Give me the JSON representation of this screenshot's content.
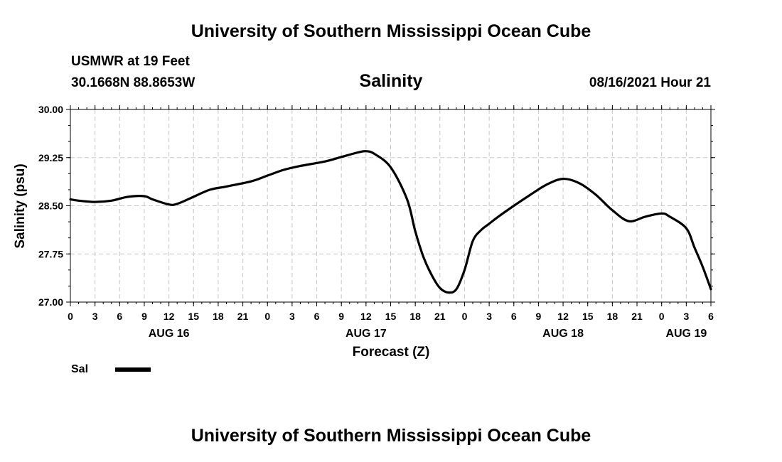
{
  "header": {
    "title": "University of Southern Mississippi Ocean Cube",
    "station": "USMWR at 19 Feet",
    "coords": "30.1668N  88.8653W",
    "chart_title": "Salinity",
    "datetime": "08/16/2021 Hour 21"
  },
  "footer": {
    "title": "University of Southern Mississippi Ocean Cube"
  },
  "legend": {
    "label": "Sal"
  },
  "chart_data": {
    "type": "line",
    "title": "Salinity",
    "xlabel": "Forecast (Z)",
    "ylabel": "Salinity (psu)",
    "xlim": [
      0,
      78
    ],
    "ylim": [
      27.0,
      30.0
    ],
    "yticks": [
      "27.00",
      "27.75",
      "28.50",
      "29.25",
      "30.00"
    ],
    "ytick_values": [
      27.0,
      27.75,
      28.5,
      29.25,
      30.0
    ],
    "xtick_labels": [
      "0",
      "3",
      "6",
      "9",
      "12",
      "15",
      "18",
      "21",
      "0",
      "3",
      "6",
      "9",
      "12",
      "15",
      "18",
      "21",
      "0",
      "3",
      "6",
      "9",
      "12",
      "15",
      "18",
      "21",
      "0",
      "3",
      "6"
    ],
    "day_labels": [
      {
        "label": "AUG 16",
        "hour": 12
      },
      {
        "label": "AUG 17",
        "hour": 36
      },
      {
        "label": "AUG 18",
        "hour": 60
      },
      {
        "label": "AUG 19",
        "hour": 75
      }
    ],
    "grid": true,
    "series": [
      {
        "name": "Sal",
        "color": "#000000",
        "x": [
          0,
          1,
          3,
          5,
          7,
          9,
          10,
          12,
          13,
          15,
          17,
          19,
          22,
          24,
          26,
          28,
          31,
          33,
          35,
          36,
          37,
          39,
          41,
          42,
          43,
          44,
          45,
          46,
          47,
          48,
          49,
          50,
          51,
          52,
          54,
          56,
          58,
          60,
          62,
          64,
          66,
          68,
          70,
          72,
          73,
          75,
          76,
          77,
          78
        ],
        "y": [
          28.6,
          28.58,
          28.56,
          28.58,
          28.64,
          28.65,
          28.6,
          28.52,
          28.53,
          28.64,
          28.75,
          28.8,
          28.88,
          28.97,
          29.06,
          29.12,
          29.19,
          29.26,
          29.33,
          29.35,
          29.31,
          29.1,
          28.6,
          28.1,
          27.7,
          27.42,
          27.22,
          27.15,
          27.2,
          27.5,
          27.95,
          28.12,
          28.22,
          28.32,
          28.5,
          28.67,
          28.83,
          28.92,
          28.85,
          28.67,
          28.43,
          28.26,
          28.33,
          28.38,
          28.33,
          28.15,
          27.85,
          27.55,
          27.2
        ]
      }
    ]
  }
}
